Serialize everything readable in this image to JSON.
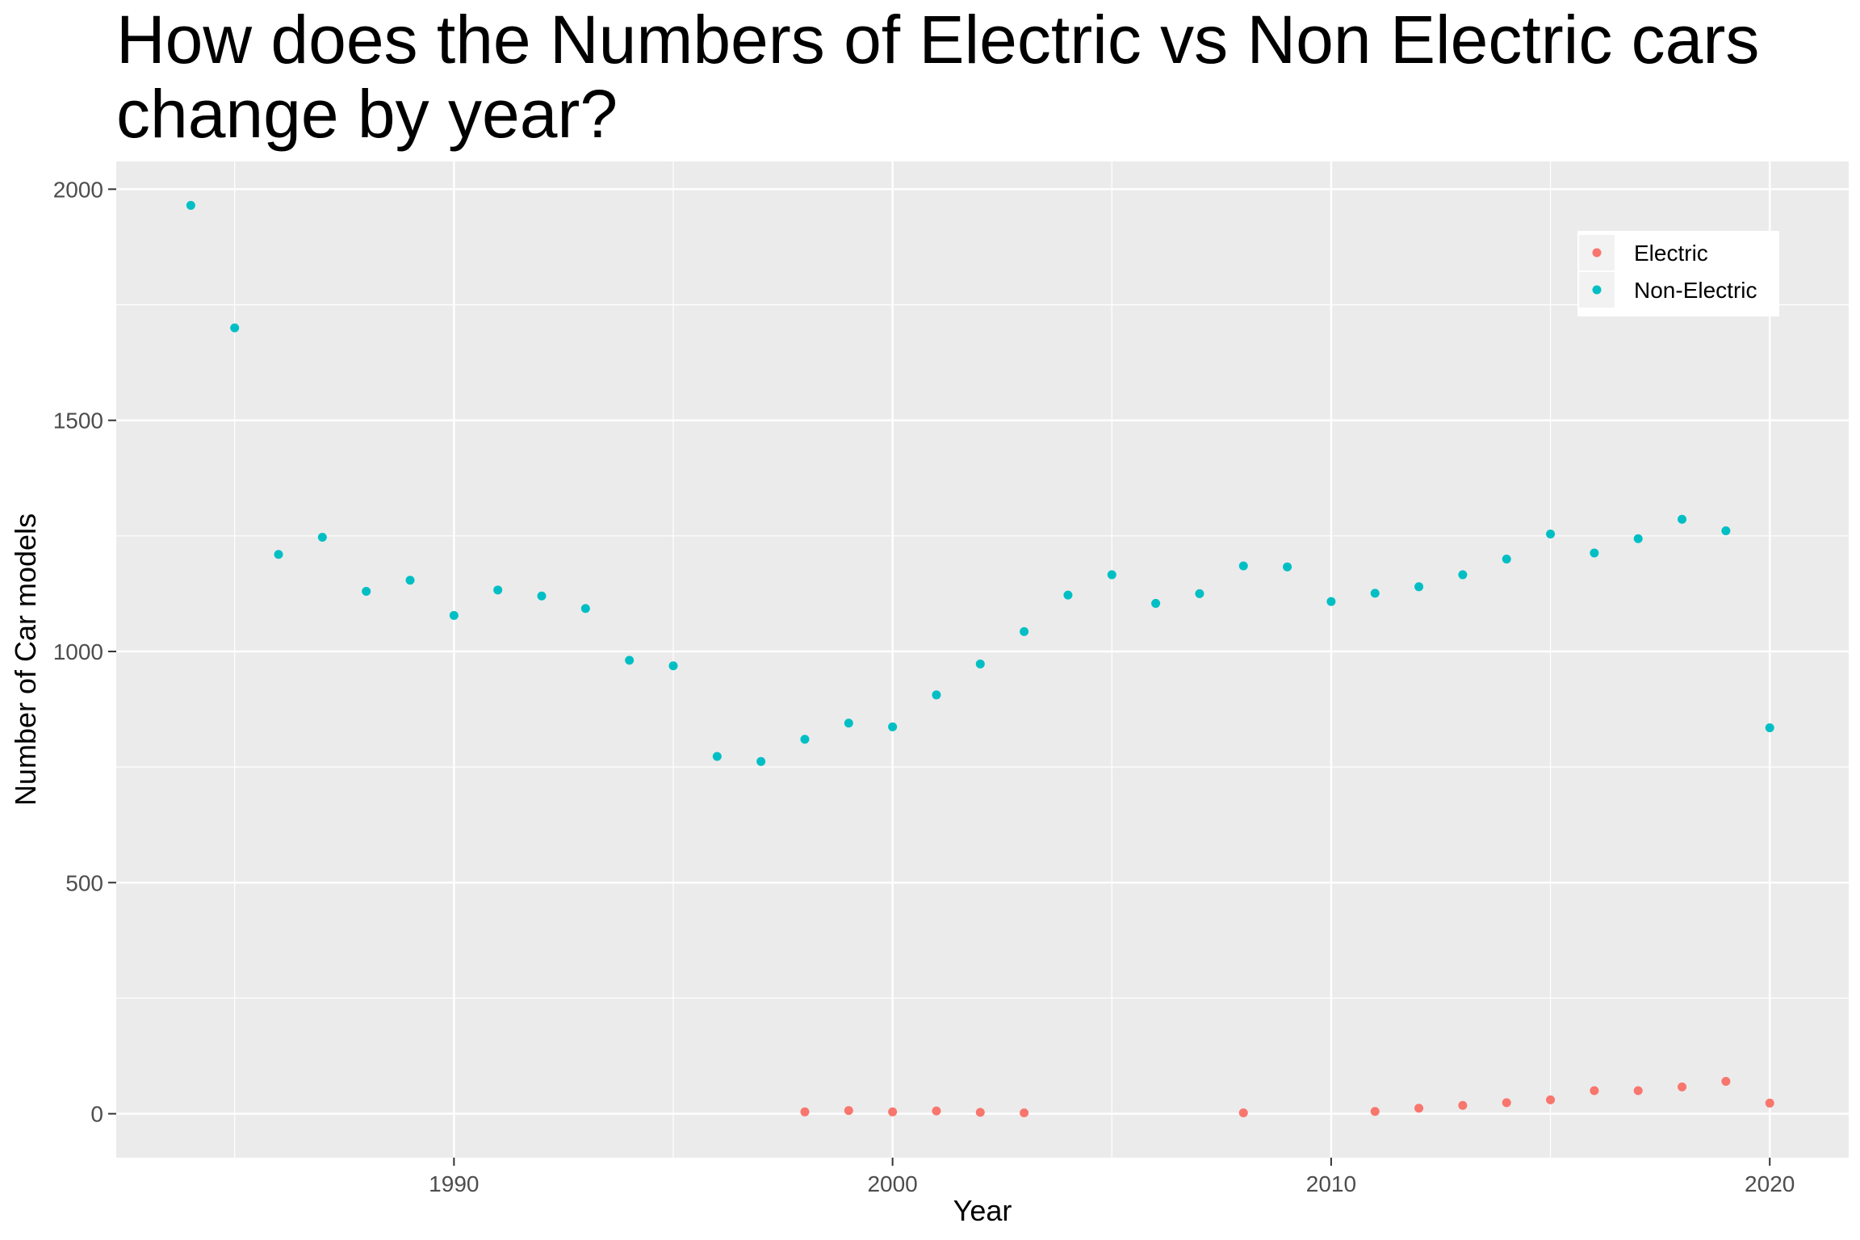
{
  "chart_data": {
    "type": "scatter",
    "title": "How does the Numbers of Electric vs Non Electric cars change by year?",
    "xlabel": "Year",
    "ylabel": "Number of Car models",
    "xlim": [
      1982.3,
      2021.8
    ],
    "ylim": [
      -95,
      2060
    ],
    "x_ticks": [
      1990,
      2000,
      2010,
      2020
    ],
    "y_ticks": [
      0,
      500,
      1000,
      1500,
      2000
    ],
    "x_minor_ticks": [
      1985,
      1995,
      2005,
      2015
    ],
    "y_minor_ticks": [
      250,
      750,
      1250,
      1750
    ],
    "x_tick_labels": [
      "1990",
      "2000",
      "2010",
      "2020"
    ],
    "y_tick_labels": [
      "0",
      "500",
      "1000",
      "1500",
      "2000"
    ],
    "legend_position": "top-right",
    "panel_background": "#ebebeb",
    "grid": true,
    "series": [
      {
        "name": "Electric",
        "color": "#f8766d",
        "points": [
          [
            1998,
            4
          ],
          [
            1999,
            7
          ],
          [
            2000,
            4
          ],
          [
            2001,
            6
          ],
          [
            2002,
            3
          ],
          [
            2003,
            2
          ],
          [
            2008,
            2
          ],
          [
            2011,
            5
          ],
          [
            2012,
            12
          ],
          [
            2013,
            18
          ],
          [
            2014,
            24
          ],
          [
            2015,
            30
          ],
          [
            2016,
            50
          ],
          [
            2017,
            50
          ],
          [
            2018,
            58
          ],
          [
            2019,
            70
          ],
          [
            2020,
            23
          ]
        ]
      },
      {
        "name": "Non-Electric",
        "color": "#00bfc4",
        "points": [
          [
            1984,
            1965
          ],
          [
            1985,
            1700
          ],
          [
            1986,
            1210
          ],
          [
            1987,
            1247
          ],
          [
            1988,
            1130
          ],
          [
            1989,
            1154
          ],
          [
            1990,
            1078
          ],
          [
            1991,
            1133
          ],
          [
            1992,
            1120
          ],
          [
            1993,
            1093
          ],
          [
            1994,
            981
          ],
          [
            1995,
            969
          ],
          [
            1996,
            773
          ],
          [
            1997,
            762
          ],
          [
            1998,
            810
          ],
          [
            1999,
            845
          ],
          [
            2000,
            837
          ],
          [
            2001,
            906
          ],
          [
            2002,
            973
          ],
          [
            2003,
            1043
          ],
          [
            2004,
            1122
          ],
          [
            2005,
            1166
          ],
          [
            2006,
            1104
          ],
          [
            2007,
            1125
          ],
          [
            2008,
            1185
          ],
          [
            2009,
            1183
          ],
          [
            2010,
            1108
          ],
          [
            2011,
            1126
          ],
          [
            2012,
            1140
          ],
          [
            2013,
            1166
          ],
          [
            2014,
            1200
          ],
          [
            2015,
            1254
          ],
          [
            2016,
            1213
          ],
          [
            2017,
            1244
          ],
          [
            2018,
            1286
          ],
          [
            2019,
            1261
          ],
          [
            2020,
            835
          ]
        ]
      }
    ]
  }
}
